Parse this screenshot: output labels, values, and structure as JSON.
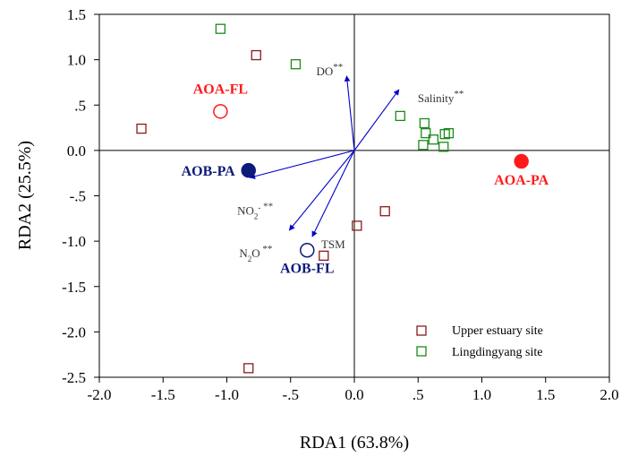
{
  "chart_data": {
    "type": "scatter",
    "xlabel": "RDA1 (63.8%)",
    "ylabel": "RDA2 (25.5%)",
    "xlim": [
      -2.0,
      2.0
    ],
    "ylim": [
      -2.5,
      1.5
    ],
    "x_ticks": [
      "-2.0",
      "-1.5",
      "-1.0",
      "-.5",
      "0.0",
      ".5",
      "1.0",
      "1.5",
      "2.0"
    ],
    "x_tick_values": [
      -2.0,
      -1.5,
      -1.0,
      -0.5,
      0.0,
      0.5,
      1.0,
      1.5,
      2.0
    ],
    "y_ticks": [
      "1.5",
      "1.0",
      ".5",
      "0.0",
      "-.5",
      "-1.0",
      "-1.5",
      "-2.0",
      "-2.5"
    ],
    "y_tick_values": [
      1.5,
      1.0,
      0.5,
      0.0,
      -0.5,
      -1.0,
      -1.5,
      -2.0,
      -2.5
    ],
    "reference_lines": {
      "x": 0,
      "y": 0
    },
    "grid": false,
    "legend_position": "bottom-right",
    "series": [
      {
        "name": "Upper estuary site",
        "marker": "open-square",
        "color": "#8b1a1a",
        "points": [
          {
            "x": -1.67,
            "y": 0.24
          },
          {
            "x": -0.77,
            "y": 1.05
          },
          {
            "x": -0.83,
            "y": -2.4
          },
          {
            "x": -0.24,
            "y": -1.16
          },
          {
            "x": 0.02,
            "y": -0.83
          },
          {
            "x": 0.24,
            "y": -0.67
          }
        ]
      },
      {
        "name": "Lingdingyang site",
        "marker": "open-square",
        "color": "#1a8a1a",
        "points": [
          {
            "x": -1.05,
            "y": 1.34
          },
          {
            "x": -0.46,
            "y": 0.95
          },
          {
            "x": 0.36,
            "y": 0.38
          },
          {
            "x": 0.55,
            "y": 0.3
          },
          {
            "x": 0.56,
            "y": 0.19
          },
          {
            "x": 0.54,
            "y": 0.06
          },
          {
            "x": 0.62,
            "y": 0.12
          },
          {
            "x": 0.7,
            "y": 0.04
          },
          {
            "x": 0.71,
            "y": 0.18
          },
          {
            "x": 0.74,
            "y": 0.19
          }
        ]
      }
    ],
    "groups": [
      {
        "label": "AOA-FL",
        "x": -1.05,
        "y": 0.43,
        "marker": "open-circle",
        "color": "#ff1a1a"
      },
      {
        "label": "AOA-PA",
        "x": 1.31,
        "y": -0.12,
        "marker": "filled-circle",
        "color": "#ff1a1a"
      },
      {
        "label": "AOB-PA",
        "x": -0.83,
        "y": -0.22,
        "marker": "filled-circle",
        "color": "#0d1a7a"
      },
      {
        "label": "AOB-FL",
        "x": -0.37,
        "y": -1.1,
        "marker": "open-circle",
        "color": "#0d1a7a"
      }
    ],
    "vectors": [
      {
        "name": "DO",
        "sup": "**",
        "x": -0.06,
        "y": 0.82
      },
      {
        "name": "Salinity",
        "sup": "**",
        "x": 0.35,
        "y": 0.67
      },
      {
        "name": "NO2-",
        "sup": "**",
        "x": -0.82,
        "y": -0.3
      },
      {
        "name": "N2O",
        "sup": "**",
        "x": -0.51,
        "y": -0.88
      },
      {
        "name": "TSM",
        "sup": "",
        "x": -0.33,
        "y": -0.95
      }
    ],
    "vector_color": "#0000cc"
  }
}
